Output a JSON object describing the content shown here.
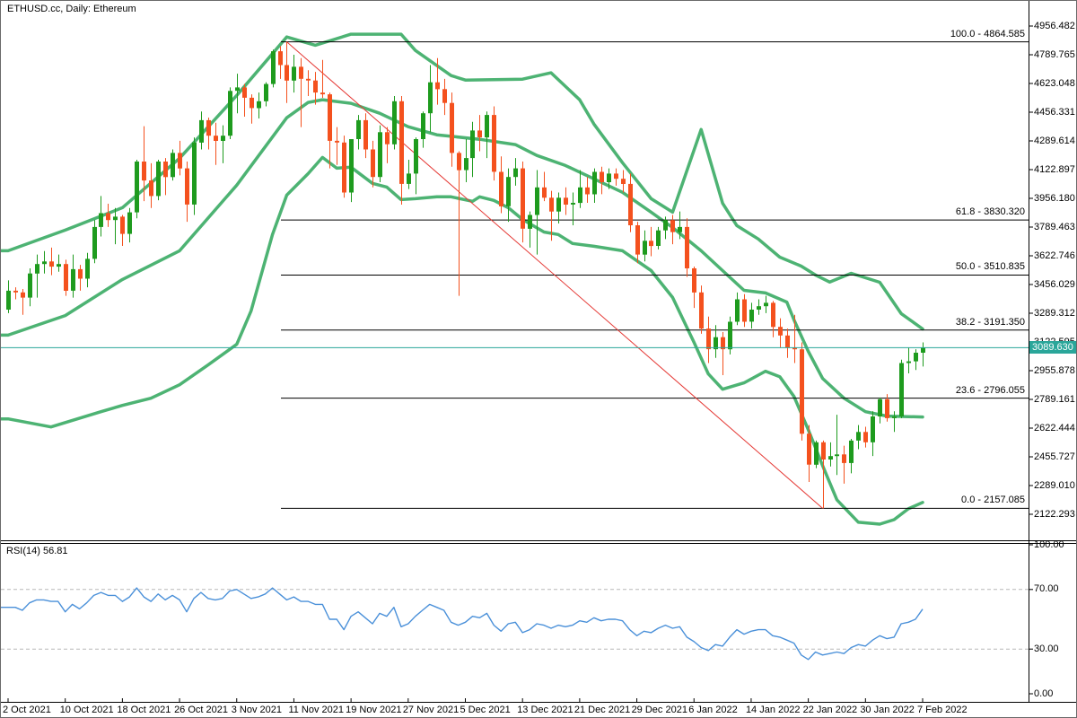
{
  "window": {
    "title": "ETHUSD.cc, Daily:  Ethereum"
  },
  "price_tag": "3089.630",
  "rsi": {
    "label": "RSI(14) 56.81",
    "period": 14,
    "last_value": 56.81
  },
  "axes": {
    "price_labels": [
      "4956.482",
      "4789.765",
      "4623.048",
      "4456.331",
      "4289.614",
      "4122.897",
      "3956.180",
      "3789.463",
      "3622.746",
      "3456.029",
      "3289.312",
      "3122.595",
      "2955.878",
      "2789.161",
      "2622.444",
      "2455.727",
      "2289.010",
      "2122.293"
    ],
    "rsi_labels": [
      {
        "text": "100.00",
        "value": 100
      },
      {
        "text": "70.00",
        "value": 70
      },
      {
        "text": "30.00",
        "value": 30
      },
      {
        "text": "0.00",
        "value": 0
      }
    ],
    "time_labels": [
      "2 Oct 2021",
      "10 Oct 2021",
      "18 Oct 2021",
      "26 Oct 2021",
      "3 Nov 2021",
      "11 Nov 2021",
      "19 Nov 2021",
      "27 Nov 2021",
      "5 Dec 2021",
      "13 Dec 2021",
      "21 Dec 2021",
      "29 Dec 2021",
      "6 Jan 2022",
      "14 Jan 2022",
      "22 Jan 2022",
      "30 Jan 2022",
      "7 Feb 2022"
    ]
  },
  "fibonacci": {
    "levels": [
      {
        "label": "100.0 - 4864.585",
        "price": 4864.585
      },
      {
        "label": "61.8 - 3830.320",
        "price": 3830.32
      },
      {
        "label": "50.0 - 3510.835",
        "price": 3510.835
      },
      {
        "label": "38.2 - 3191.350",
        "price": 3191.35
      },
      {
        "label": "23.6 - 2796.055",
        "price": 2796.055
      },
      {
        "label": "0.0 - 2157.085",
        "price": 2157.085
      }
    ]
  },
  "colors": {
    "bull": "#1e9b1e",
    "bear": "#f4511e",
    "bollinger": "#4db373",
    "fib_line": "#000000",
    "trendline": "#e53935",
    "current_price": "#2aa69a",
    "rsi_line": "#4a90d9",
    "rsi_levels": "#b8b8b8",
    "axis_text": "#000000",
    "background": "#ffffff"
  },
  "chart_data": {
    "type": "candlestick",
    "symbol": "ETHUSD.cc",
    "timeframe": "Daily",
    "title": "ETHUSD.cc, Daily:  Ethereum",
    "start_date": "2 Oct 2021",
    "end_date": "7 Feb 2022",
    "frequency": "daily",
    "current_price": 3089.63,
    "price_axis_range": [
      2060,
      5010
    ],
    "rsi_axis_range": [
      0,
      100
    ],
    "rsi_levels": [
      70,
      30
    ],
    "grid": false,
    "candles": [
      [
        3310,
        3480,
        3290,
        3420
      ],
      [
        3420,
        3440,
        3370,
        3410
      ],
      [
        3410,
        3430,
        3280,
        3380
      ],
      [
        3380,
        3550,
        3330,
        3520
      ],
      [
        3520,
        3630,
        3380,
        3575
      ],
      [
        3575,
        3650,
        3520,
        3590
      ],
      [
        3590,
        3670,
        3510,
        3560
      ],
      [
        3560,
        3630,
        3530,
        3575
      ],
      [
        3575,
        3600,
        3390,
        3420
      ],
      [
        3420,
        3630,
        3380,
        3545
      ],
      [
        3545,
        3570,
        3420,
        3490
      ],
      [
        3490,
        3640,
        3440,
        3605
      ],
      [
        3605,
        3830,
        3580,
        3790
      ],
      [
        3790,
        3970,
        3735,
        3870
      ],
      [
        3870,
        3925,
        3790,
        3830
      ],
      [
        3830,
        3900,
        3690,
        3850
      ],
      [
        3850,
        3860,
        3680,
        3750
      ],
      [
        3750,
        3900,
        3700,
        3875
      ],
      [
        3875,
        4180,
        3840,
        4170
      ],
      [
        4170,
        4375,
        3940,
        4060
      ],
      [
        4060,
        4160,
        3900,
        3970
      ],
      [
        3970,
        4180,
        3945,
        4170
      ],
      [
        4170,
        4190,
        3975,
        4080
      ],
      [
        4080,
        4240,
        4060,
        4220
      ],
      [
        4220,
        4290,
        4090,
        4130
      ],
      [
        4130,
        4170,
        3820,
        3920
      ],
      [
        3920,
        4310,
        3860,
        4280
      ],
      [
        4280,
        4460,
        4240,
        4410
      ],
      [
        4410,
        4425,
        4240,
        4320
      ],
      [
        4320,
        4395,
        4150,
        4290
      ],
      [
        4290,
        4380,
        4160,
        4320
      ],
      [
        4320,
        4600,
        4300,
        4580
      ],
      [
        4580,
        4680,
        4450,
        4600
      ],
      [
        4600,
        4620,
        4430,
        4540
      ],
      [
        4540,
        4560,
        4390,
        4480
      ],
      [
        4480,
        4570,
        4420,
        4520
      ],
      [
        4520,
        4630,
        4490,
        4620
      ],
      [
        4620,
        4820,
        4600,
        4810
      ],
      [
        4810,
        4840,
        4650,
        4730
      ],
      [
        4730,
        4864.585,
        4510,
        4640
      ],
      [
        4640,
        4790,
        4570,
        4720
      ],
      [
        4720,
        4770,
        4370,
        4650
      ],
      [
        4650,
        4700,
        4550,
        4640
      ],
      [
        4640,
        4690,
        4500,
        4570
      ],
      [
        4570,
        4760,
        4540,
        4560
      ],
      [
        4560,
        4570,
        4130,
        4290
      ],
      [
        4290,
        4370,
        4150,
        4280
      ],
      [
        4280,
        4320,
        3960,
        3990
      ],
      [
        3990,
        4300,
        3935,
        4300
      ],
      [
        4300,
        4440,
        4240,
        4410
      ],
      [
        4410,
        4450,
        4190,
        4240
      ],
      [
        4240,
        4290,
        4020,
        4080
      ],
      [
        4080,
        4380,
        4050,
        4340
      ],
      [
        4340,
        4370,
        4160,
        4270
      ],
      [
        4270,
        4550,
        4240,
        4520
      ],
      [
        4520,
        4550,
        3920,
        4040
      ],
      [
        4040,
        4180,
        4010,
        4100
      ],
      [
        4100,
        4310,
        3980,
        4300
      ],
      [
        4300,
        4460,
        4250,
        4450
      ],
      [
        4450,
        4730,
        4340,
        4630
      ],
      [
        4630,
        4770,
        4500,
        4590
      ],
      [
        4590,
        4650,
        4440,
        4510
      ],
      [
        4510,
        4570,
        4140,
        4220
      ],
      [
        4220,
        4230,
        3390,
        4120
      ],
      [
        4120,
        4300,
        4050,
        4190
      ],
      [
        4190,
        4400,
        4080,
        4350
      ],
      [
        4350,
        4440,
        4230,
        4310
      ],
      [
        4310,
        4460,
        4190,
        4440
      ],
      [
        4440,
        4490,
        4060,
        4110
      ],
      [
        4110,
        4200,
        3870,
        3910
      ],
      [
        3910,
        4130,
        3820,
        4080
      ],
      [
        4080,
        4190,
        4030,
        4130
      ],
      [
        4130,
        4170,
        3700,
        3780
      ],
      [
        3780,
        3880,
        3670,
        3860
      ],
      [
        3860,
        4120,
        3630,
        4020
      ],
      [
        4020,
        4110,
        3940,
        3960
      ],
      [
        3960,
        4000,
        3710,
        3880
      ],
      [
        3880,
        3990,
        3810,
        3960
      ],
      [
        3960,
        4020,
        3860,
        3920
      ],
      [
        3920,
        3990,
        3800,
        3930
      ],
      [
        3930,
        4120,
        3900,
        4020
      ],
      [
        4020,
        4080,
        3930,
        3980
      ],
      [
        3980,
        4130,
        3930,
        4110
      ],
      [
        4110,
        4140,
        3980,
        4050
      ],
      [
        4050,
        4130,
        4010,
        4100
      ],
      [
        4100,
        4130,
        4030,
        4070
      ],
      [
        4070,
        4120,
        3990,
        4040
      ],
      [
        4040,
        4100,
        3760,
        3800
      ],
      [
        3800,
        3820,
        3580,
        3630
      ],
      [
        3630,
        3770,
        3590,
        3710
      ],
      [
        3710,
        3790,
        3620,
        3680
      ],
      [
        3680,
        3790,
        3660,
        3770
      ],
      [
        3770,
        3850,
        3720,
        3830
      ],
      [
        3830,
        3860,
        3690,
        3760
      ],
      [
        3760,
        3880,
        3720,
        3790
      ],
      [
        3790,
        3840,
        3500,
        3550
      ],
      [
        3550,
        3560,
        3320,
        3410
      ],
      [
        3410,
        3450,
        3170,
        3200
      ],
      [
        3200,
        3270,
        3000,
        3080
      ],
      [
        3080,
        3220,
        3030,
        3150
      ],
      [
        3150,
        3180,
        2930,
        3080
      ],
      [
        3080,
        3270,
        3050,
        3240
      ],
      [
        3240,
        3410,
        3220,
        3370
      ],
      [
        3370,
        3400,
        3210,
        3240
      ],
      [
        3240,
        3350,
        3200,
        3310
      ],
      [
        3310,
        3370,
        3280,
        3330
      ],
      [
        3330,
        3390,
        3290,
        3350
      ],
      [
        3350,
        3360,
        3150,
        3210
      ],
      [
        3210,
        3260,
        3090,
        3160
      ],
      [
        3160,
        3200,
        3030,
        3090
      ],
      [
        3090,
        3280,
        3000,
        3080
      ],
      [
        3080,
        3120,
        2550,
        2590
      ],
      [
        2590,
        2640,
        2310,
        2410
      ],
      [
        2410,
        2550,
        2390,
        2540
      ],
      [
        2540,
        2550,
        2157.085,
        2440
      ],
      [
        2440,
        2540,
        2400,
        2460
      ],
      [
        2460,
        2700,
        2350,
        2470
      ],
      [
        2470,
        2520,
        2300,
        2420
      ],
      [
        2420,
        2560,
        2360,
        2550
      ],
      [
        2550,
        2640,
        2500,
        2600
      ],
      [
        2600,
        2630,
        2510,
        2540
      ],
      [
        2540,
        2720,
        2460,
        2690
      ],
      [
        2690,
        2800,
        2650,
        2790
      ],
      [
        2790,
        2820,
        2660,
        2680
      ],
      [
        2680,
        2720,
        2600,
        2690
      ],
      [
        2690,
        3020,
        2680,
        3000
      ],
      [
        3000,
        3090,
        2940,
        3010
      ],
      [
        3010,
        3080,
        2960,
        3060
      ],
      [
        3060,
        3120,
        2980,
        3089.63
      ]
    ],
    "rsi_series": [
      58,
      58,
      56,
      61,
      63,
      63,
      62,
      62,
      55,
      60,
      57,
      61,
      66,
      68,
      66,
      66,
      62,
      65,
      71,
      65,
      62,
      67,
      63,
      66,
      63,
      55,
      64,
      68,
      64,
      63,
      64,
      69,
      70,
      67,
      64,
      65,
      67,
      71,
      67,
      63,
      65,
      62,
      62,
      60,
      60,
      50,
      50,
      43,
      52,
      55,
      51,
      47,
      54,
      52,
      58,
      45,
      47,
      52,
      56,
      60,
      58,
      56,
      48,
      46,
      48,
      52,
      51,
      54,
      46,
      42,
      47,
      48,
      41,
      43,
      47,
      46,
      44,
      46,
      45,
      46,
      49,
      48,
      51,
      49,
      50,
      50,
      49,
      43,
      39,
      42,
      41,
      44,
      46,
      44,
      45,
      38,
      35,
      31,
      29,
      33,
      32,
      38,
      43,
      40,
      42,
      43,
      43,
      39,
      38,
      36,
      34,
      26,
      23,
      28,
      26,
      27,
      28,
      27,
      31,
      33,
      32,
      36,
      39,
      37,
      38,
      47,
      48,
      50,
      56.81
    ],
    "bollinger": {
      "period": 20,
      "upper": [
        [
          0,
          3652
        ],
        [
          8,
          3772
        ],
        [
          16,
          3902
        ],
        [
          24,
          4189
        ],
        [
          32,
          4554
        ],
        [
          39,
          4893
        ],
        [
          43,
          4845
        ],
        [
          48,
          4909
        ],
        [
          55,
          4909
        ],
        [
          57,
          4815
        ],
        [
          62,
          4669
        ],
        [
          64,
          4643
        ],
        [
          72,
          4648
        ],
        [
          76,
          4685
        ],
        [
          80,
          4528
        ],
        [
          82,
          4387
        ],
        [
          86,
          4163
        ],
        [
          90,
          3954
        ],
        [
          93,
          3876
        ],
        [
          97,
          4356
        ],
        [
          100,
          3928
        ],
        [
          102,
          3798
        ],
        [
          105,
          3720
        ],
        [
          108,
          3615
        ],
        [
          111,
          3563
        ],
        [
          113,
          3511
        ],
        [
          115,
          3470
        ],
        [
          118,
          3521
        ],
        [
          122,
          3469
        ],
        [
          125,
          3287
        ],
        [
          128,
          3198
        ]
      ],
      "middle": [
        [
          0,
          3162
        ],
        [
          8,
          3276
        ],
        [
          16,
          3485
        ],
        [
          24,
          3652
        ],
        [
          32,
          4033
        ],
        [
          39,
          4424
        ],
        [
          42,
          4513
        ],
        [
          44,
          4529
        ],
        [
          48,
          4508
        ],
        [
          52,
          4450
        ],
        [
          56,
          4372
        ],
        [
          60,
          4325
        ],
        [
          66,
          4299
        ],
        [
          71,
          4268
        ],
        [
          74,
          4205
        ],
        [
          78,
          4147
        ],
        [
          82,
          4069
        ],
        [
          86,
          3991
        ],
        [
          90,
          3876
        ],
        [
          93,
          3787
        ],
        [
          97,
          3652
        ],
        [
          100,
          3537
        ],
        [
          103,
          3422
        ],
        [
          106,
          3407
        ],
        [
          109,
          3354
        ],
        [
          110,
          3250
        ],
        [
          112,
          3068
        ],
        [
          114,
          2911
        ],
        [
          117,
          2796
        ],
        [
          120,
          2718
        ],
        [
          123,
          2692
        ],
        [
          128,
          2687
        ]
      ],
      "lower": [
        [
          0,
          2676
        ],
        [
          6,
          2629
        ],
        [
          13,
          2718
        ],
        [
          16,
          2754
        ],
        [
          20,
          2796
        ],
        [
          24,
          2874
        ],
        [
          28,
          2989
        ],
        [
          32,
          3109
        ],
        [
          34,
          3302
        ],
        [
          37,
          3746
        ],
        [
          39,
          3975
        ],
        [
          42,
          4100
        ],
        [
          44,
          4194
        ],
        [
          46,
          4131
        ],
        [
          48,
          4137
        ],
        [
          51,
          4043
        ],
        [
          53,
          4022
        ],
        [
          55,
          3949
        ],
        [
          57,
          3954
        ],
        [
          60,
          3965
        ],
        [
          62,
          3965
        ],
        [
          65,
          3939
        ],
        [
          66,
          3965
        ],
        [
          68,
          3944
        ],
        [
          70,
          3902
        ],
        [
          72,
          3834
        ],
        [
          75,
          3761
        ],
        [
          77,
          3746
        ],
        [
          79,
          3694
        ],
        [
          82,
          3678
        ],
        [
          86,
          3652
        ],
        [
          90,
          3537
        ],
        [
          93,
          3381
        ],
        [
          96,
          3120
        ],
        [
          98,
          2937
        ],
        [
          100,
          2848
        ],
        [
          103,
          2885
        ],
        [
          106,
          2953
        ],
        [
          108,
          2921
        ],
        [
          110,
          2806
        ],
        [
          112,
          2613
        ],
        [
          114,
          2405
        ],
        [
          116,
          2206
        ],
        [
          119,
          2076
        ],
        [
          122,
          2065
        ],
        [
          124,
          2091
        ],
        [
          126,
          2154
        ],
        [
          128,
          2191
        ]
      ]
    },
    "trendline": {
      "from": {
        "bar_index": 39,
        "date": "10 Nov 2021",
        "price": 4864.585
      },
      "to": {
        "bar_index": 114,
        "date": "24 Jan 2022",
        "price": 2157.085
      }
    }
  }
}
